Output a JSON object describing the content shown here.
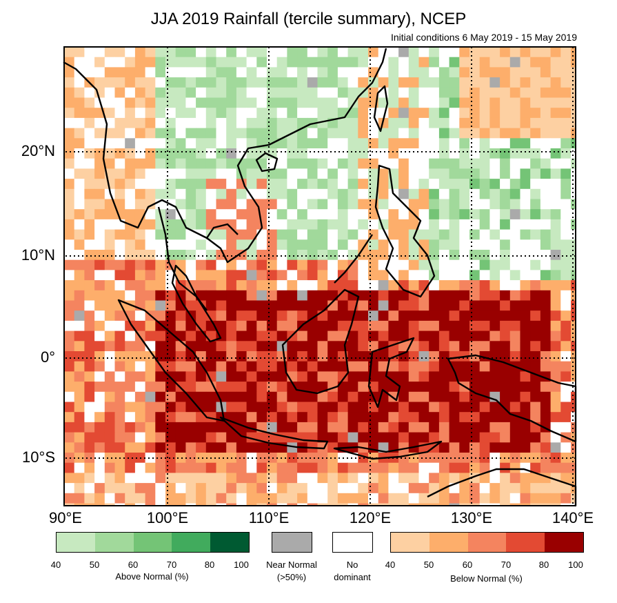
{
  "title": "JJA 2019 Rainfall (tercile summary), NCEP",
  "subtitle": "Initial conditions 6 May 2019 - 15 May 2019",
  "lat_labels": [
    "20°N",
    "10°N",
    "0°",
    "10°S"
  ],
  "lon_labels": [
    "90°E",
    "100°E",
    "110°E",
    "120°E",
    "130°E",
    "140°E"
  ],
  "legend": {
    "above": {
      "label": "Above Normal (%)",
      "ticks": [
        "40",
        "50",
        "60",
        "70",
        "80",
        "100"
      ],
      "colors": [
        "#c7e9c0",
        "#a1d99b",
        "#74c476",
        "#41ab5d",
        "#005a32"
      ]
    },
    "near": {
      "label_line1": "Near Normal",
      "label_line2": "(>50%)",
      "color": "#aaaaaa"
    },
    "none": {
      "label_line1": "No",
      "label_line2": "dominant",
      "color": "#ffffff"
    },
    "below": {
      "label": "Below Normal (%)",
      "ticks": [
        "40",
        "50",
        "60",
        "70",
        "80",
        "100"
      ],
      "colors": [
        "#fdd0a2",
        "#fdae6b",
        "#f4845f",
        "#e34a33",
        "#990000"
      ]
    }
  }
}
